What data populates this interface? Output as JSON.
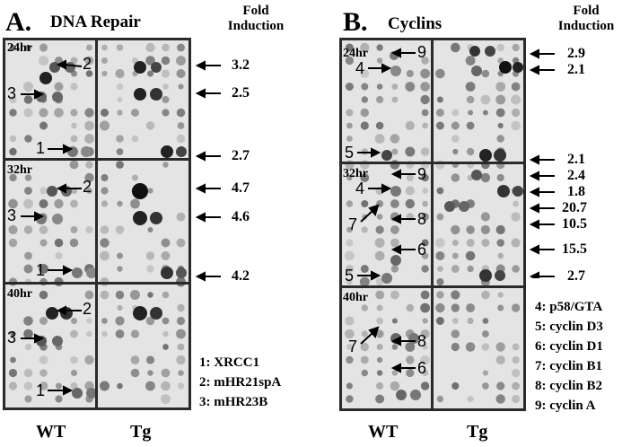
{
  "panelA": {
    "letter": "A.",
    "title": "DNA Repair",
    "fold_header_line1": "Fold",
    "fold_header_line2": "Induction",
    "time_labels": [
      "24hr",
      "32hr",
      "40hr"
    ],
    "fold_values": [
      "3.2",
      "2.5",
      "2.7",
      "4.7",
      "4.6",
      "4.2"
    ],
    "spot_labels": [
      "2",
      "3",
      "1",
      "2",
      "3",
      "1",
      "2",
      "3",
      "1"
    ],
    "legend": [
      "1: XRCC1",
      "2: mHR21spA",
      "3: mHR23B"
    ],
    "bottom_labels": [
      "WT",
      "Tg"
    ]
  },
  "panelB": {
    "letter": "B.",
    "title": "Cyclins",
    "fold_header_line1": "Fold",
    "fold_header_line2": "Induction",
    "time_labels": [
      "24hr",
      "32hr",
      "40hr"
    ],
    "fold_values": [
      "2.9",
      "2.1",
      "2.1",
      "2.4",
      "1.8",
      "20.7",
      "10.5",
      "15.5",
      "2.7"
    ],
    "spot_labels": [
      "9",
      "4",
      "5",
      "9",
      "4",
      "7",
      "8",
      "6",
      "5",
      "7",
      "8",
      "6"
    ],
    "legend": [
      "4: p58/GTA",
      "5: cyclin D3",
      "6: cyclin D1",
      "7: cyclin B1",
      "8: cyclin B2",
      "9: cyclin A"
    ],
    "bottom_labels": [
      "WT",
      "Tg"
    ]
  }
}
